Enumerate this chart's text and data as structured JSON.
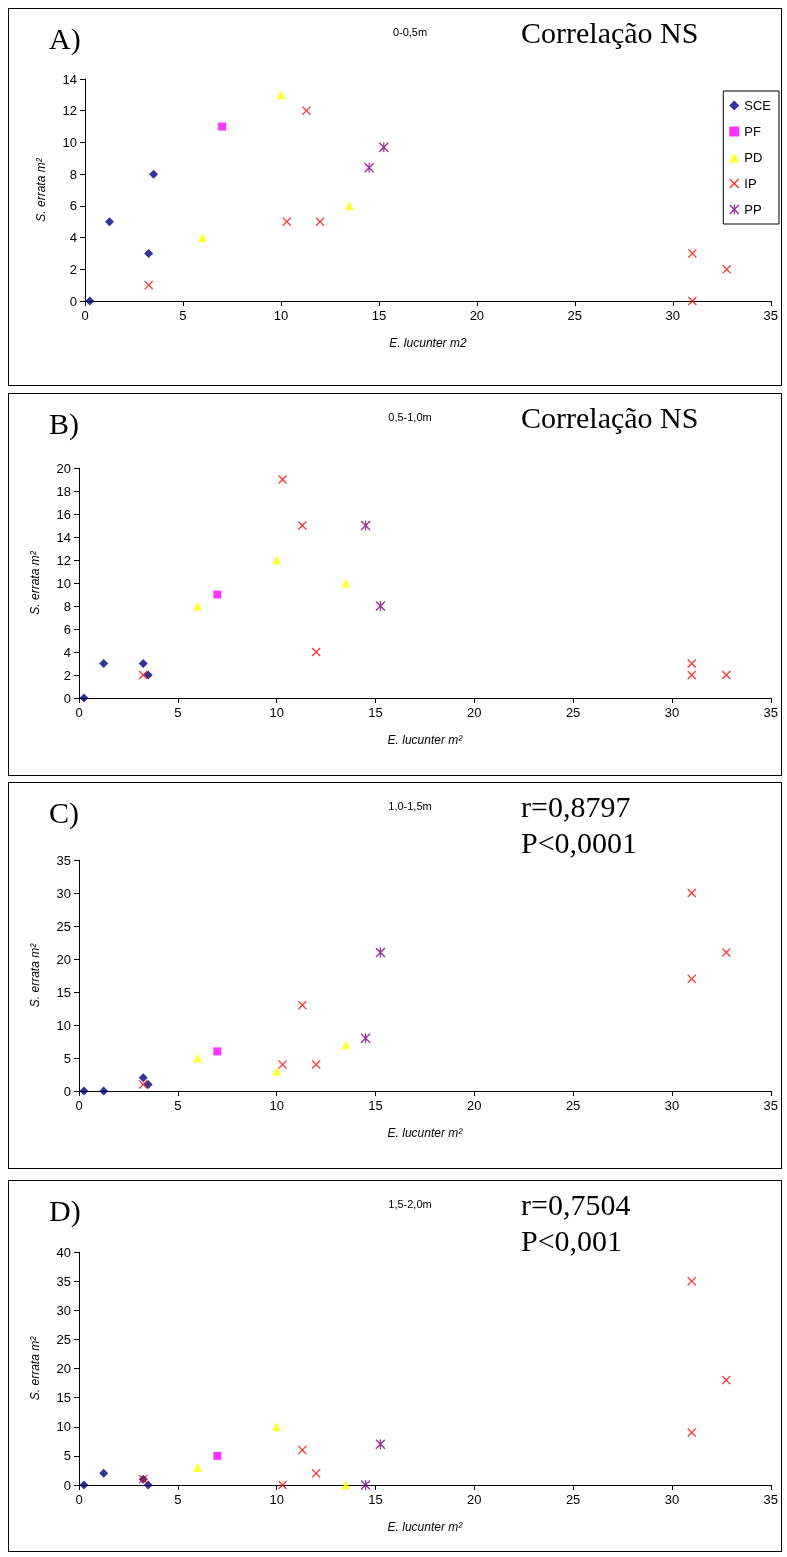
{
  "chart_data": [
    {
      "type": "scatter",
      "title": "0-0,5m",
      "xlabel": "E. lucunter m2",
      "ylabel": "S. errata m²",
      "annotations": [
        "A)",
        "Correlação NS"
      ],
      "xlim": [
        0,
        35
      ],
      "xticks": [
        0,
        5,
        10,
        15,
        20,
        25,
        30,
        35
      ],
      "ylim": [
        0,
        14
      ],
      "yticks": [
        0,
        2,
        4,
        6,
        8,
        10,
        12,
        14
      ],
      "grid": false,
      "legend": "top right",
      "series": [
        {
          "name": "SCE",
          "color": "#000080",
          "marker": "diamond",
          "x": [
            0.25,
            1.25,
            3.25,
            3.5
          ],
          "values": [
            0,
            5,
            3,
            8
          ]
        },
        {
          "name": "PF",
          "color": "#ff00ff",
          "marker": "square",
          "x": [
            7
          ],
          "values": [
            11
          ]
        },
        {
          "name": "PD",
          "color": "#ffff00",
          "marker": "triangle",
          "x": [
            6,
            10,
            13.5
          ],
          "values": [
            4,
            13,
            6
          ]
        },
        {
          "name": "IP",
          "color": "#ff0000",
          "marker": "cross",
          "x": [
            3.25,
            10.3,
            11.3,
            12,
            31,
            31,
            32.75
          ],
          "values": [
            1,
            5,
            12,
            5,
            3,
            0,
            2
          ]
        },
        {
          "name": "PP",
          "color": "#800080",
          "marker": "star",
          "x": [
            14.5,
            15.25
          ],
          "values": [
            8.4,
            9.7
          ]
        }
      ]
    },
    {
      "type": "scatter",
      "title": "0,5-1,0m",
      "xlabel": "E. lucunter m²",
      "ylabel": "S. errata m²",
      "annotations": [
        "B)",
        "Correlação NS"
      ],
      "xlim": [
        0,
        35
      ],
      "xticks": [
        0,
        5,
        10,
        15,
        20,
        25,
        30,
        35
      ],
      "ylim": [
        0,
        20
      ],
      "yticks": [
        0,
        2,
        4,
        6,
        8,
        10,
        12,
        14,
        16,
        18,
        20
      ],
      "grid": false,
      "legend": false,
      "series": [
        {
          "color": "#000080",
          "marker": "diamond",
          "x": [
            0.25,
            1.25,
            3.25,
            3.5
          ],
          "values": [
            0,
            3,
            3,
            2
          ]
        },
        {
          "color": "#ff00ff",
          "marker": "square",
          "x": [
            7
          ],
          "values": [
            9
          ]
        },
        {
          "color": "#ffff00",
          "marker": "triangle",
          "x": [
            6,
            10,
            13.5
          ],
          "values": [
            8,
            12,
            10
          ]
        },
        {
          "color": "#ff0000",
          "marker": "cross",
          "x": [
            3.25,
            10.3,
            11.3,
            12,
            31,
            31,
            32.75
          ],
          "values": [
            2,
            19,
            15,
            4,
            3,
            2,
            2
          ]
        },
        {
          "color": "#800080",
          "marker": "star",
          "x": [
            14.5,
            15.25
          ],
          "values": [
            15,
            8
          ]
        }
      ]
    },
    {
      "type": "scatter",
      "title": "1,0-1,5m",
      "xlabel": "E. lucunter m²",
      "ylabel": "S. errata m²",
      "annotations": [
        "C)",
        "r=0,8797",
        "P<0,0001"
      ],
      "xlim": [
        0,
        35
      ],
      "xticks": [
        0,
        5,
        10,
        15,
        20,
        25,
        30,
        35
      ],
      "ylim": [
        0,
        35
      ],
      "yticks": [
        0,
        5,
        10,
        15,
        20,
        25,
        30,
        35
      ],
      "grid": false,
      "legend": false,
      "series": [
        {
          "color": "#000080",
          "marker": "diamond",
          "x": [
            0.25,
            1.25,
            3.25,
            3.5
          ],
          "values": [
            0,
            0,
            2,
            1
          ]
        },
        {
          "color": "#ff00ff",
          "marker": "square",
          "x": [
            7
          ],
          "values": [
            6
          ]
        },
        {
          "color": "#ffff00",
          "marker": "triangle",
          "x": [
            6,
            10,
            13.5
          ],
          "values": [
            5,
            3,
            7
          ]
        },
        {
          "color": "#ff0000",
          "marker": "cross",
          "x": [
            3.25,
            10.3,
            11.3,
            12,
            31,
            31,
            32.75
          ],
          "values": [
            1,
            4,
            13,
            4,
            30,
            17,
            21
          ]
        },
        {
          "color": "#800080",
          "marker": "star",
          "x": [
            14.5,
            15.25
          ],
          "values": [
            8,
            21
          ]
        }
      ]
    },
    {
      "type": "scatter",
      "title": "1,5-2,0m",
      "xlabel": "E. lucunter m²",
      "ylabel": "S. errata m²",
      "annotations": [
        "D)",
        "r=0,7504",
        "P<0,001"
      ],
      "xlim": [
        0,
        35
      ],
      "xticks": [
        0,
        5,
        10,
        15,
        20,
        25,
        30,
        35
      ],
      "ylim": [
        0,
        40
      ],
      "yticks": [
        0,
        5,
        10,
        15,
        20,
        25,
        30,
        35,
        40
      ],
      "grid": false,
      "legend": false,
      "series": [
        {
          "color": "#000080",
          "marker": "diamond",
          "x": [
            0.25,
            1.25,
            3.25,
            3.5
          ],
          "values": [
            0,
            2,
            1,
            0
          ]
        },
        {
          "color": "#ff00ff",
          "marker": "square",
          "x": [
            7
          ],
          "values": [
            5
          ]
        },
        {
          "color": "#ffff00",
          "marker": "triangle",
          "x": [
            6,
            10,
            13.5
          ],
          "values": [
            3,
            10,
            0
          ]
        },
        {
          "color": "#ff0000",
          "marker": "cross",
          "x": [
            3.25,
            10.3,
            11.3,
            12,
            31,
            31,
            32.75
          ],
          "values": [
            1,
            0,
            6,
            2,
            35,
            9,
            18
          ]
        },
        {
          "color": "#800080",
          "marker": "star",
          "x": [
            14.5,
            15.25
          ],
          "values": [
            0,
            7
          ]
        }
      ]
    }
  ]
}
